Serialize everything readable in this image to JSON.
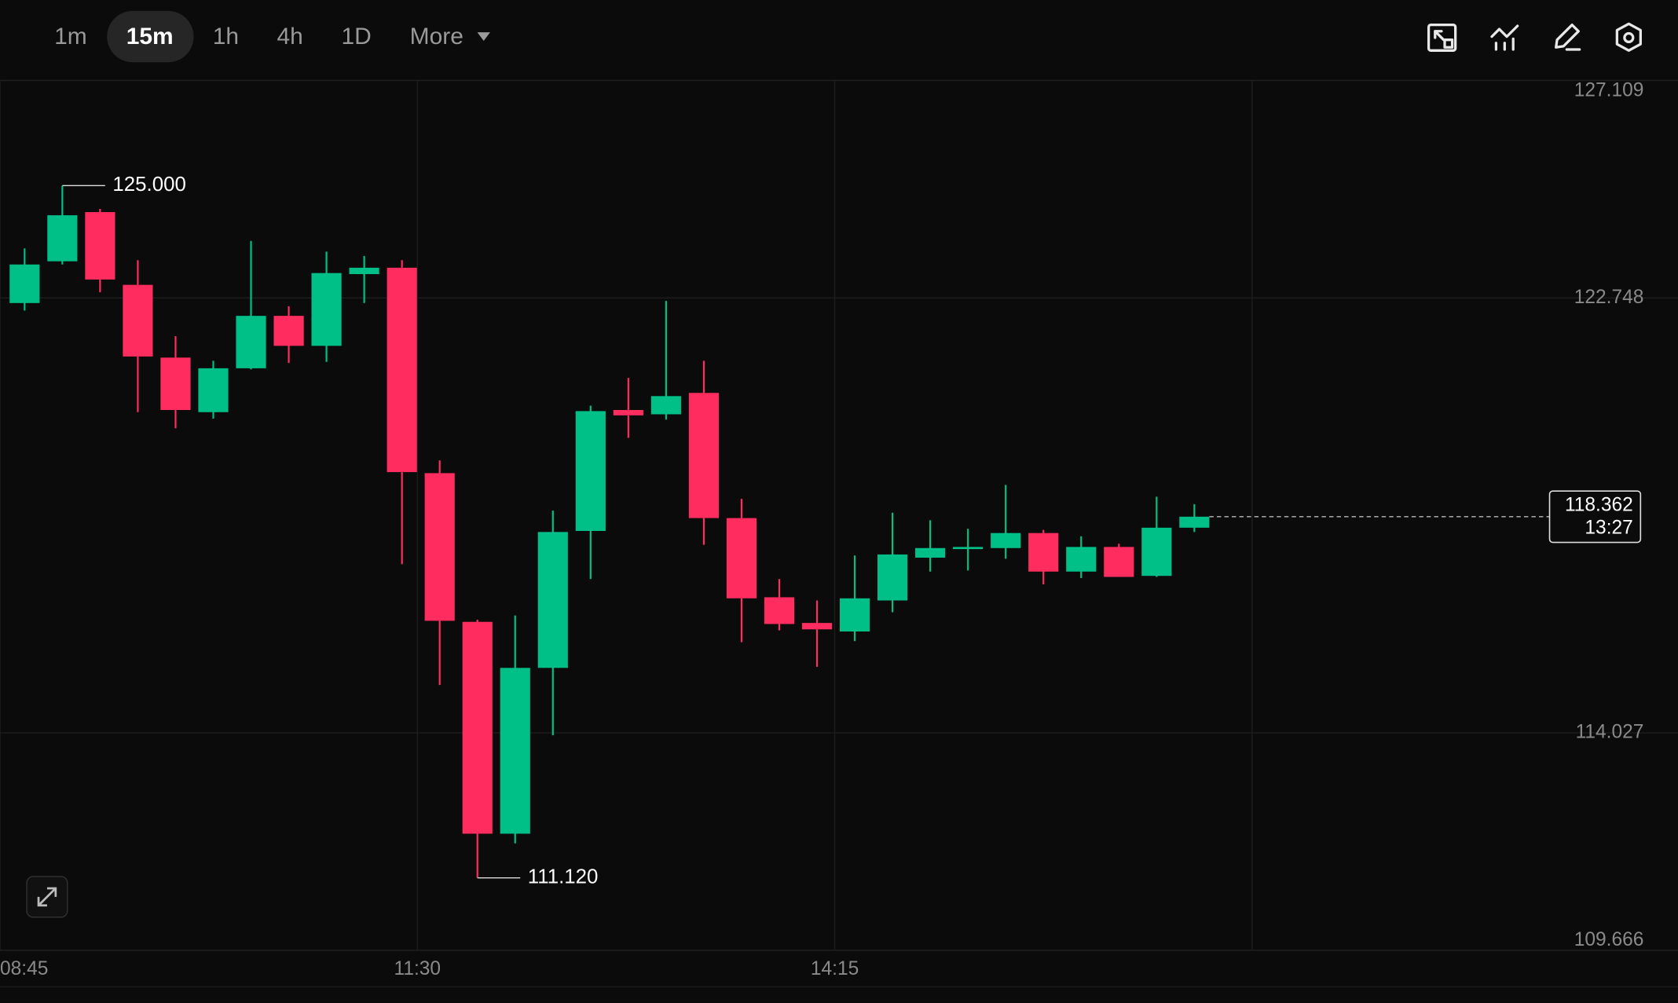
{
  "toolbar": {
    "intervals": [
      "1m",
      "15m",
      "1h",
      "4h",
      "1D"
    ],
    "active": 1,
    "more": "More"
  },
  "chart_data": {
    "type": "candlestick",
    "up_color": "#00c087",
    "down_color": "#ff2d5f",
    "open": [
      122.646,
      123.483,
      124.47,
      123.011,
      121.552,
      120.458,
      121.338,
      122.389,
      121.788,
      123.226,
      123.354,
      119.235,
      116.253,
      112.005,
      115.33,
      118.076,
      120.501,
      120.415,
      120.844,
      118.334,
      116.746,
      116.231,
      116.06,
      116.682,
      117.54,
      117.712,
      117.733,
      118.034,
      117.261,
      117.755,
      117.175,
      118.141
    ],
    "high": [
      123.741,
      125.0,
      124.534,
      123.505,
      121.981,
      121.488,
      123.891,
      122.582,
      123.676,
      123.59,
      123.505,
      119.492,
      116.296,
      116.381,
      118.484,
      120.587,
      121.145,
      122.689,
      121.488,
      118.72,
      117.111,
      116.682,
      117.583,
      118.441,
      118.291,
      118.119,
      118.999,
      118.098,
      117.969,
      117.819,
      118.763,
      118.613
    ],
    "low": [
      122.496,
      123.419,
      122.861,
      120.458,
      120.136,
      120.329,
      121.316,
      121.445,
      121.466,
      122.646,
      117.411,
      114.987,
      111.12,
      111.812,
      113.979,
      117.111,
      119.943,
      120.308,
      117.798,
      115.845,
      116.081,
      115.352,
      115.867,
      116.446,
      117.261,
      117.283,
      117.519,
      117.004,
      117.132,
      117.154,
      117.154,
      118.055
    ],
    "close": [
      123.419,
      124.406,
      123.118,
      121.574,
      120.501,
      121.338,
      122.389,
      121.788,
      123.247,
      123.354,
      119.256,
      116.274,
      112.005,
      115.33,
      118.055,
      120.479,
      120.394,
      120.78,
      118.334,
      116.725,
      116.21,
      116.103,
      116.725,
      117.604,
      117.733,
      117.755,
      118.034,
      117.261,
      117.755,
      117.154,
      118.141,
      118.362
    ],
    "max_label": "125.000",
    "min_label": "111.120",
    "last_label": "118.362",
    "countdown": "13:27",
    "ylim": [
      109.666,
      127.109
    ],
    "yticks": [
      109.666,
      114.027,
      122.748,
      127.109
    ],
    "xticks": [
      "08:45",
      "11:30",
      "14:15"
    ],
    "grid": true
  }
}
